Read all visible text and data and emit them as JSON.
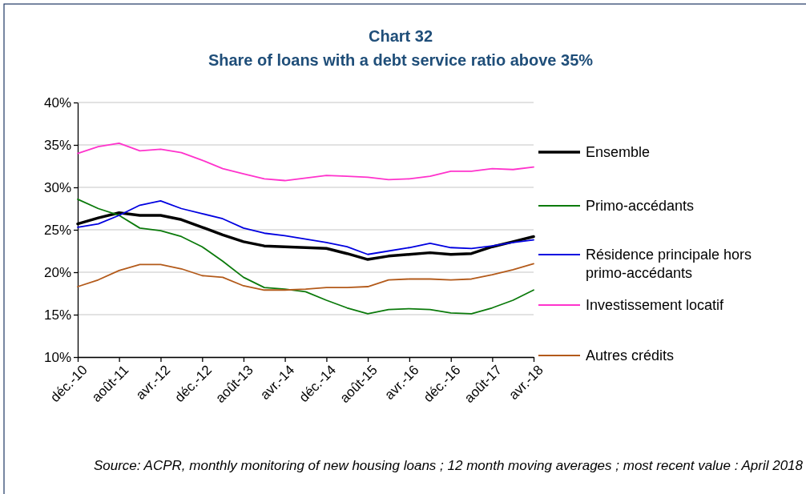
{
  "chart_data": {
    "type": "line",
    "title": "Chart 32",
    "subtitle": "Share of loans with a debt service ratio above 35%",
    "x": [
      "2010-12",
      "2011-04",
      "2011-08",
      "2011-12",
      "2012-04",
      "2012-08",
      "2012-12",
      "2013-04",
      "2013-08",
      "2013-12",
      "2014-04",
      "2014-08",
      "2014-12",
      "2015-04",
      "2015-08",
      "2015-12",
      "2016-04",
      "2016-08",
      "2016-12",
      "2017-04",
      "2017-08",
      "2017-12",
      "2018-04"
    ],
    "xlim": [
      "2010-12",
      "2018-04"
    ],
    "xticks": [
      {
        "value": "2010-12",
        "label": "déc.-10"
      },
      {
        "value": "2011-08",
        "label": "août-11"
      },
      {
        "value": "2012-04",
        "label": "avr.-12"
      },
      {
        "value": "2012-12",
        "label": "déc.-12"
      },
      {
        "value": "2013-08",
        "label": "août-13"
      },
      {
        "value": "2014-04",
        "label": "avr.-14"
      },
      {
        "value": "2014-12",
        "label": "déc.-14"
      },
      {
        "value": "2015-08",
        "label": "août-15"
      },
      {
        "value": "2016-04",
        "label": "avr.-16"
      },
      {
        "value": "2016-12",
        "label": "déc.-16"
      },
      {
        "value": "2017-08",
        "label": "août-17"
      },
      {
        "value": "2018-04",
        "label": "avr.-18"
      }
    ],
    "ylim": [
      10,
      40
    ],
    "yticks": [
      {
        "value": 10,
        "label": "10%"
      },
      {
        "value": 15,
        "label": "15%"
      },
      {
        "value": 20,
        "label": "20%"
      },
      {
        "value": 25,
        "label": "25%"
      },
      {
        "value": 30,
        "label": "30%"
      },
      {
        "value": 35,
        "label": "35%"
      },
      {
        "value": 40,
        "label": "40%"
      }
    ],
    "grid": "y",
    "legend": "right",
    "marker": "none",
    "line_style": "solid",
    "series": [
      {
        "name": "Ensemble",
        "color": "#000000",
        "values": [
          25.7,
          26.4,
          27.0,
          26.7,
          26.7,
          26.2,
          25.3,
          24.4,
          23.6,
          23.1,
          23.0,
          22.9,
          22.8,
          22.2,
          21.5,
          21.9,
          22.1,
          22.3,
          22.1,
          22.2,
          23.0,
          23.6,
          24.2
        ]
      },
      {
        "name": "Primo-accédants",
        "color": "#0b7a0b",
        "values": [
          28.6,
          27.5,
          26.7,
          25.2,
          24.9,
          24.2,
          23.0,
          21.3,
          19.4,
          18.2,
          18.0,
          17.7,
          16.7,
          15.8,
          15.1,
          15.6,
          15.7,
          15.6,
          15.2,
          15.1,
          15.8,
          16.7,
          17.9
        ]
      },
      {
        "name": "Résidence principale hors primo-accédants",
        "color": "#0000e0",
        "values": [
          25.3,
          25.7,
          26.7,
          27.9,
          28.4,
          27.5,
          26.9,
          26.3,
          25.2,
          24.6,
          24.3,
          23.9,
          23.5,
          23.0,
          22.1,
          22.5,
          22.9,
          23.4,
          22.9,
          22.8,
          23.1,
          23.5,
          23.8
        ]
      },
      {
        "name": "Investissement locatif",
        "color": "#ff33cc",
        "values": [
          34.0,
          34.8,
          35.2,
          34.3,
          34.5,
          34.1,
          33.2,
          32.2,
          31.6,
          31.0,
          30.8,
          31.1,
          31.4,
          31.3,
          31.2,
          30.9,
          31.0,
          31.3,
          31.9,
          31.9,
          32.2,
          32.1,
          32.4
        ]
      },
      {
        "name": "Autres crédits",
        "color": "#b35a1a",
        "values": [
          18.3,
          19.1,
          20.2,
          20.9,
          20.9,
          20.4,
          19.6,
          19.4,
          18.4,
          17.9,
          17.9,
          18.0,
          18.2,
          18.2,
          18.3,
          19.1,
          19.2,
          19.2,
          19.1,
          19.2,
          19.7,
          20.3,
          21.0
        ]
      }
    ],
    "annotations": [
      "Source: ACPR, monthly monitoring of new housing loans ; 12 month moving averages ; most recent value : April 2018"
    ]
  }
}
